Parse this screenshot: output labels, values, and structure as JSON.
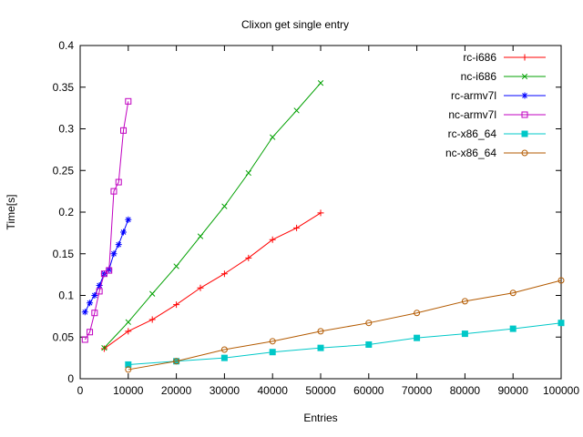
{
  "chart_data": {
    "type": "line",
    "title": "Clixon get single entry",
    "xlabel": "Entries",
    "ylabel": "Time[s]",
    "xlim": [
      0,
      100000
    ],
    "ylim": [
      0,
      0.4
    ],
    "grid": false,
    "legend_position": "top-right-inside",
    "x_ticks": [
      0,
      10000,
      20000,
      30000,
      40000,
      50000,
      60000,
      70000,
      80000,
      90000,
      100000
    ],
    "x_tick_labels": [
      "0",
      "10000",
      "20000",
      "30000",
      "40000",
      "50000",
      "60000",
      "70000",
      "80000",
      "90000",
      "100000"
    ],
    "y_ticks": [
      0,
      0.05,
      0.1,
      0.15,
      0.2,
      0.25,
      0.3,
      0.35,
      0.4
    ],
    "y_tick_labels": [
      "0",
      "0.05",
      "0.1",
      "0.15",
      "0.2",
      "0.25",
      "0.3",
      "0.35",
      "0.4"
    ],
    "series": [
      {
        "name": "rc-i686",
        "color": "#ff0000",
        "marker": "plus",
        "x": [
          5000,
          10000,
          15000,
          20000,
          25000,
          30000,
          35000,
          40000,
          45000,
          50000
        ],
        "y": [
          0.036,
          0.057,
          0.071,
          0.089,
          0.109,
          0.126,
          0.145,
          0.167,
          0.181,
          0.199
        ]
      },
      {
        "name": "nc-i686",
        "color": "#00a000",
        "marker": "cross",
        "x": [
          5000,
          10000,
          15000,
          20000,
          25000,
          30000,
          35000,
          40000,
          45000,
          50000
        ],
        "y": [
          0.037,
          0.068,
          0.102,
          0.135,
          0.171,
          0.207,
          0.247,
          0.29,
          0.322,
          0.355
        ]
      },
      {
        "name": "rc-armv7l",
        "color": "#0000ff",
        "marker": "asterisk",
        "x": [
          1000,
          2000,
          3000,
          4000,
          5000,
          6000,
          7000,
          8000,
          9000,
          10000
        ],
        "y": [
          0.08,
          0.091,
          0.1,
          0.112,
          0.126,
          0.131,
          0.15,
          0.161,
          0.176,
          0.191
        ]
      },
      {
        "name": "nc-armv7l",
        "color": "#c000c0",
        "marker": "square-open",
        "x": [
          1000,
          2000,
          3000,
          4000,
          5000,
          6000,
          7000,
          8000,
          9000,
          10000
        ],
        "y": [
          0.047,
          0.056,
          0.079,
          0.105,
          0.126,
          0.13,
          0.225,
          0.236,
          0.298,
          0.333
        ]
      },
      {
        "name": "rc-x86_64",
        "color": "#00c8c8",
        "marker": "square-filled",
        "x": [
          10000,
          20000,
          30000,
          40000,
          50000,
          60000,
          70000,
          80000,
          90000,
          100000
        ],
        "y": [
          0.017,
          0.021,
          0.025,
          0.032,
          0.037,
          0.041,
          0.049,
          0.054,
          0.06,
          0.067
        ]
      },
      {
        "name": "nc-x86_64",
        "color": "#b35a00",
        "marker": "circle-open",
        "x": [
          10000,
          20000,
          30000,
          40000,
          50000,
          60000,
          70000,
          80000,
          90000,
          100000
        ],
        "y": [
          0.011,
          0.021,
          0.035,
          0.045,
          0.057,
          0.067,
          0.079,
          0.093,
          0.103,
          0.118
        ]
      }
    ]
  }
}
